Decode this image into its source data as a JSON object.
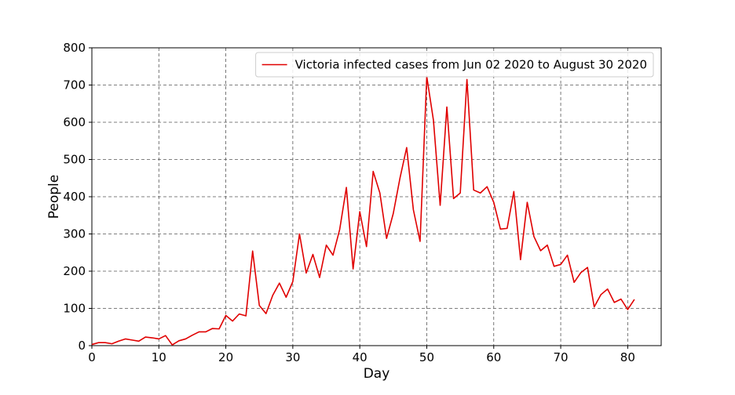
{
  "chart_data": {
    "type": "line",
    "xlabel": "Day",
    "ylabel": "People",
    "xlim": [
      0,
      85
    ],
    "ylim": [
      0,
      800
    ],
    "xticks": [
      0,
      10,
      20,
      30,
      40,
      50,
      60,
      70,
      80
    ],
    "yticks": [
      0,
      100,
      200,
      300,
      400,
      500,
      600,
      700,
      800
    ],
    "grid": true,
    "legend_position": "top-right",
    "series": [
      {
        "name": "Victoria infected cases from Jun 02 2020 to August 30 2020",
        "color": "#e00000",
        "x": [
          0,
          1,
          2,
          3,
          4,
          5,
          6,
          7,
          8,
          9,
          10,
          11,
          12,
          13,
          14,
          15,
          16,
          17,
          18,
          19,
          20,
          21,
          22,
          23,
          24,
          25,
          26,
          27,
          28,
          29,
          30,
          31,
          32,
          33,
          34,
          35,
          36,
          37,
          38,
          39,
          40,
          41,
          42,
          43,
          44,
          45,
          46,
          47,
          48,
          49,
          50,
          51,
          52,
          53,
          54,
          55,
          56,
          57,
          58,
          59,
          60,
          61,
          62,
          63,
          64,
          65,
          66,
          67,
          68,
          69,
          70,
          71,
          72,
          73,
          74,
          75,
          76,
          77,
          78,
          79,
          80,
          81
        ],
        "y": [
          3,
          8,
          8,
          5,
          12,
          18,
          15,
          12,
          23,
          21,
          18,
          27,
          2,
          13,
          18,
          28,
          37,
          37,
          46,
          45,
          81,
          66,
          85,
          80,
          254,
          108,
          86,
          135,
          168,
          130,
          172,
          300,
          195,
          245,
          183,
          270,
          243,
          312,
          425,
          206,
          360,
          266,
          468,
          410,
          288,
          355,
          450,
          532,
          365,
          280,
          723,
          605,
          377,
          641,
          395,
          410,
          715,
          418,
          410,
          427,
          385,
          313,
          315,
          414,
          231,
          385,
          293,
          255,
          270,
          213,
          218,
          243,
          170,
          196,
          210,
          104,
          137,
          152,
          116,
          125,
          97,
          124
        ]
      }
    ]
  }
}
